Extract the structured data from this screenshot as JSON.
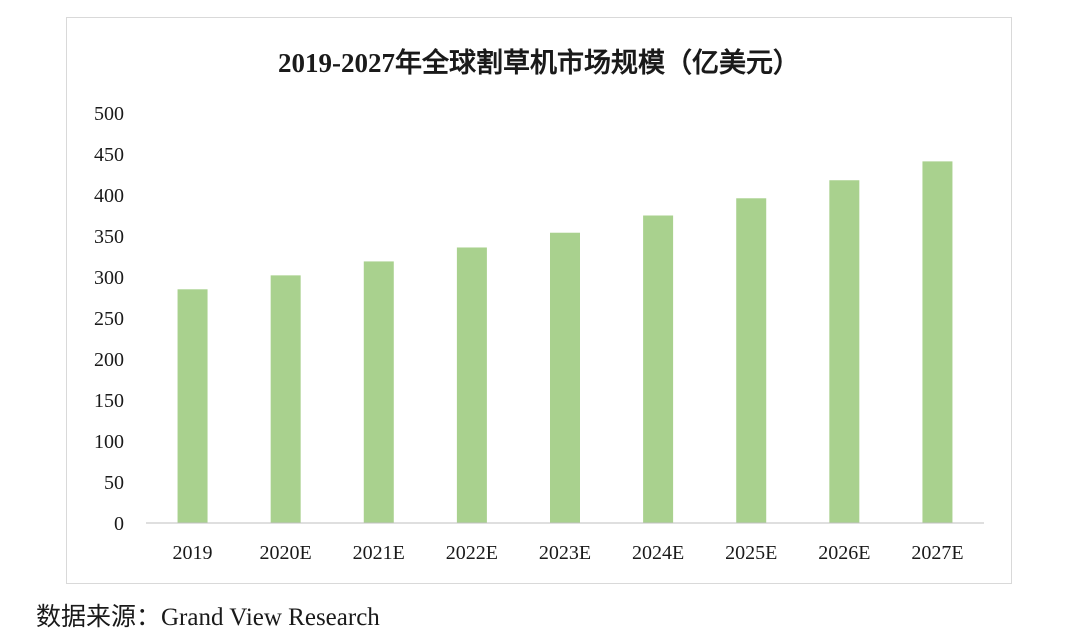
{
  "chart_data": {
    "type": "bar",
    "title": "2019-2027年全球割草机市场规模（亿美元）",
    "xlabel": "",
    "ylabel": "",
    "categories": [
      "2019",
      "2020E",
      "2021E",
      "2022E",
      "2023E",
      "2024E",
      "2025E",
      "2026E",
      "2027E"
    ],
    "values": [
      285,
      302,
      319,
      336,
      354,
      375,
      396,
      418,
      441
    ],
    "ylim": [
      0,
      500
    ],
    "yticks": [
      0,
      50,
      100,
      150,
      200,
      250,
      300,
      350,
      400,
      450,
      500
    ],
    "grid": false,
    "legend": "none",
    "bar_color": "#a9d18e"
  },
  "source_text": "数据来源：Grand View Research"
}
